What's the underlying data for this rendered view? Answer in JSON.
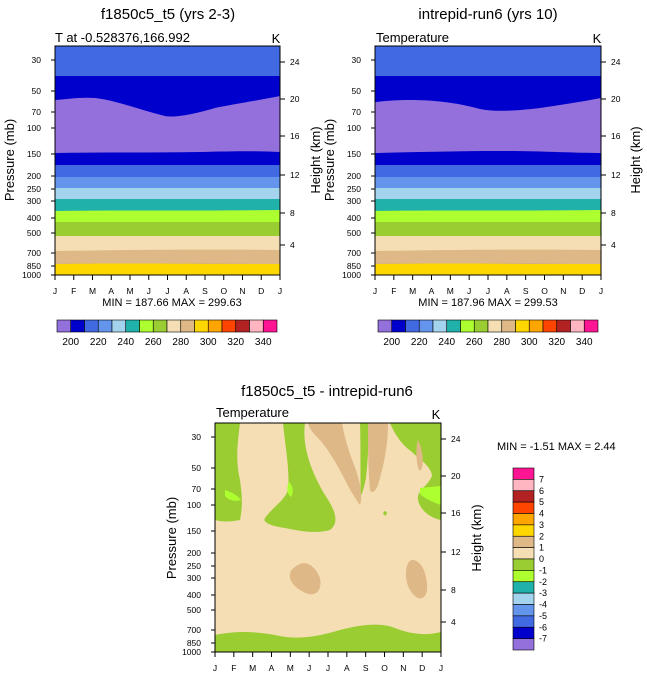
{
  "panels": [
    {
      "title": "f1850c5_t5 (yrs 2-3)",
      "left_label": "T at -0.528376,166.992",
      "unit": "K",
      "minmax": "MIN = 187.66 MAX = 299.63",
      "ylabel": "Pressure (mb)",
      "ylabel_right": "Height (km)"
    },
    {
      "title": "intrepid-run6 (yrs 10)",
      "left_label": "Temperature",
      "unit": "K",
      "minmax": "MIN = 187.96 MAX = 299.53",
      "ylabel": "Pressure (mb)",
      "ylabel_right": "Height (km)"
    },
    {
      "title": "f1850c5_t5 - intrepid-run6",
      "left_label": "Temperature",
      "unit": "K",
      "minmax": "MIN =  -1.51 MAX =   2.44",
      "ylabel": "Pressure (mb)",
      "ylabel_right": "Height (km)"
    }
  ],
  "chart_data": [
    {
      "type": "heatmap",
      "title": "f1850c5_t5 (yrs 2-3)",
      "x_ticks": [
        "J",
        "F",
        "M",
        "A",
        "M",
        "J",
        "J",
        "A",
        "S",
        "O",
        "N",
        "D",
        "J"
      ],
      "pressure_ticks": [
        "30",
        "50",
        "70",
        "100",
        "150",
        "200",
        "250",
        "300",
        "400",
        "500",
        "700",
        "850",
        "1000"
      ],
      "height_ticks": [
        "24",
        "20",
        "16",
        "12",
        "8",
        "4"
      ],
      "ylabel": "Pressure (mb)",
      "ylabel_right": "Height (km)",
      "min": 187.66,
      "max": 299.63,
      "colorbar": {
        "labels": [
          "200",
          "220",
          "240",
          "260",
          "280",
          "300",
          "320",
          "340"
        ],
        "colors": [
          "#9370db",
          "#0000cd",
          "#4169e1",
          "#6495ed",
          "#a4d3ee",
          "#20b2aa",
          "#adff2f",
          "#9acd32",
          "#f5deb3",
          "#deb887",
          "#ffd700",
          "#ffa500",
          "#ff4500",
          "#b22222",
          "#ffb6c1",
          "#ff1493"
        ]
      }
    },
    {
      "type": "heatmap",
      "title": "intrepid-run6 (yrs 10)",
      "x_ticks": [
        "J",
        "F",
        "M",
        "A",
        "M",
        "J",
        "J",
        "A",
        "S",
        "O",
        "N",
        "D",
        "J"
      ],
      "pressure_ticks": [
        "30",
        "50",
        "70",
        "100",
        "150",
        "200",
        "250",
        "300",
        "400",
        "500",
        "700",
        "850",
        "1000"
      ],
      "height_ticks": [
        "24",
        "20",
        "16",
        "12",
        "8",
        "4"
      ],
      "ylabel": "Pressure (mb)",
      "ylabel_right": "Height (km)",
      "min": 187.96,
      "max": 299.53,
      "colorbar": {
        "labels": [
          "200",
          "220",
          "240",
          "260",
          "280",
          "300",
          "320",
          "340"
        ],
        "colors": [
          "#9370db",
          "#0000cd",
          "#4169e1",
          "#6495ed",
          "#a4d3ee",
          "#20b2aa",
          "#adff2f",
          "#9acd32",
          "#f5deb3",
          "#deb887",
          "#ffd700",
          "#ffa500",
          "#ff4500",
          "#b22222",
          "#ffb6c1",
          "#ff1493"
        ]
      }
    },
    {
      "type": "heatmap",
      "title": "f1850c5_t5 - intrepid-run6",
      "x_ticks": [
        "J",
        "F",
        "M",
        "A",
        "M",
        "J",
        "J",
        "A",
        "S",
        "O",
        "N",
        "D",
        "J"
      ],
      "pressure_ticks": [
        "30",
        "50",
        "70",
        "100",
        "150",
        "200",
        "250",
        "300",
        "400",
        "500",
        "700",
        "850",
        "1000"
      ],
      "height_ticks": [
        "24",
        "20",
        "16",
        "12",
        "8",
        "4"
      ],
      "ylabel": "Pressure (mb)",
      "ylabel_right": "Height (km)",
      "min": -1.51,
      "max": 2.44,
      "colorbar": {
        "labels": [
          "7",
          "6",
          "5",
          "4",
          "3",
          "2",
          "1",
          "0",
          "-1",
          "-2",
          "-3",
          "-4",
          "-5",
          "-6",
          "-7"
        ],
        "colors": [
          "#ff1493",
          "#ffb6c1",
          "#b22222",
          "#ff4500",
          "#ffa500",
          "#ffd700",
          "#deb887",
          "#f5deb3",
          "#9acd32",
          "#adff2f",
          "#20b2aa",
          "#a4d3ee",
          "#6495ed",
          "#4169e1",
          "#0000cd",
          "#9370db"
        ]
      }
    }
  ]
}
